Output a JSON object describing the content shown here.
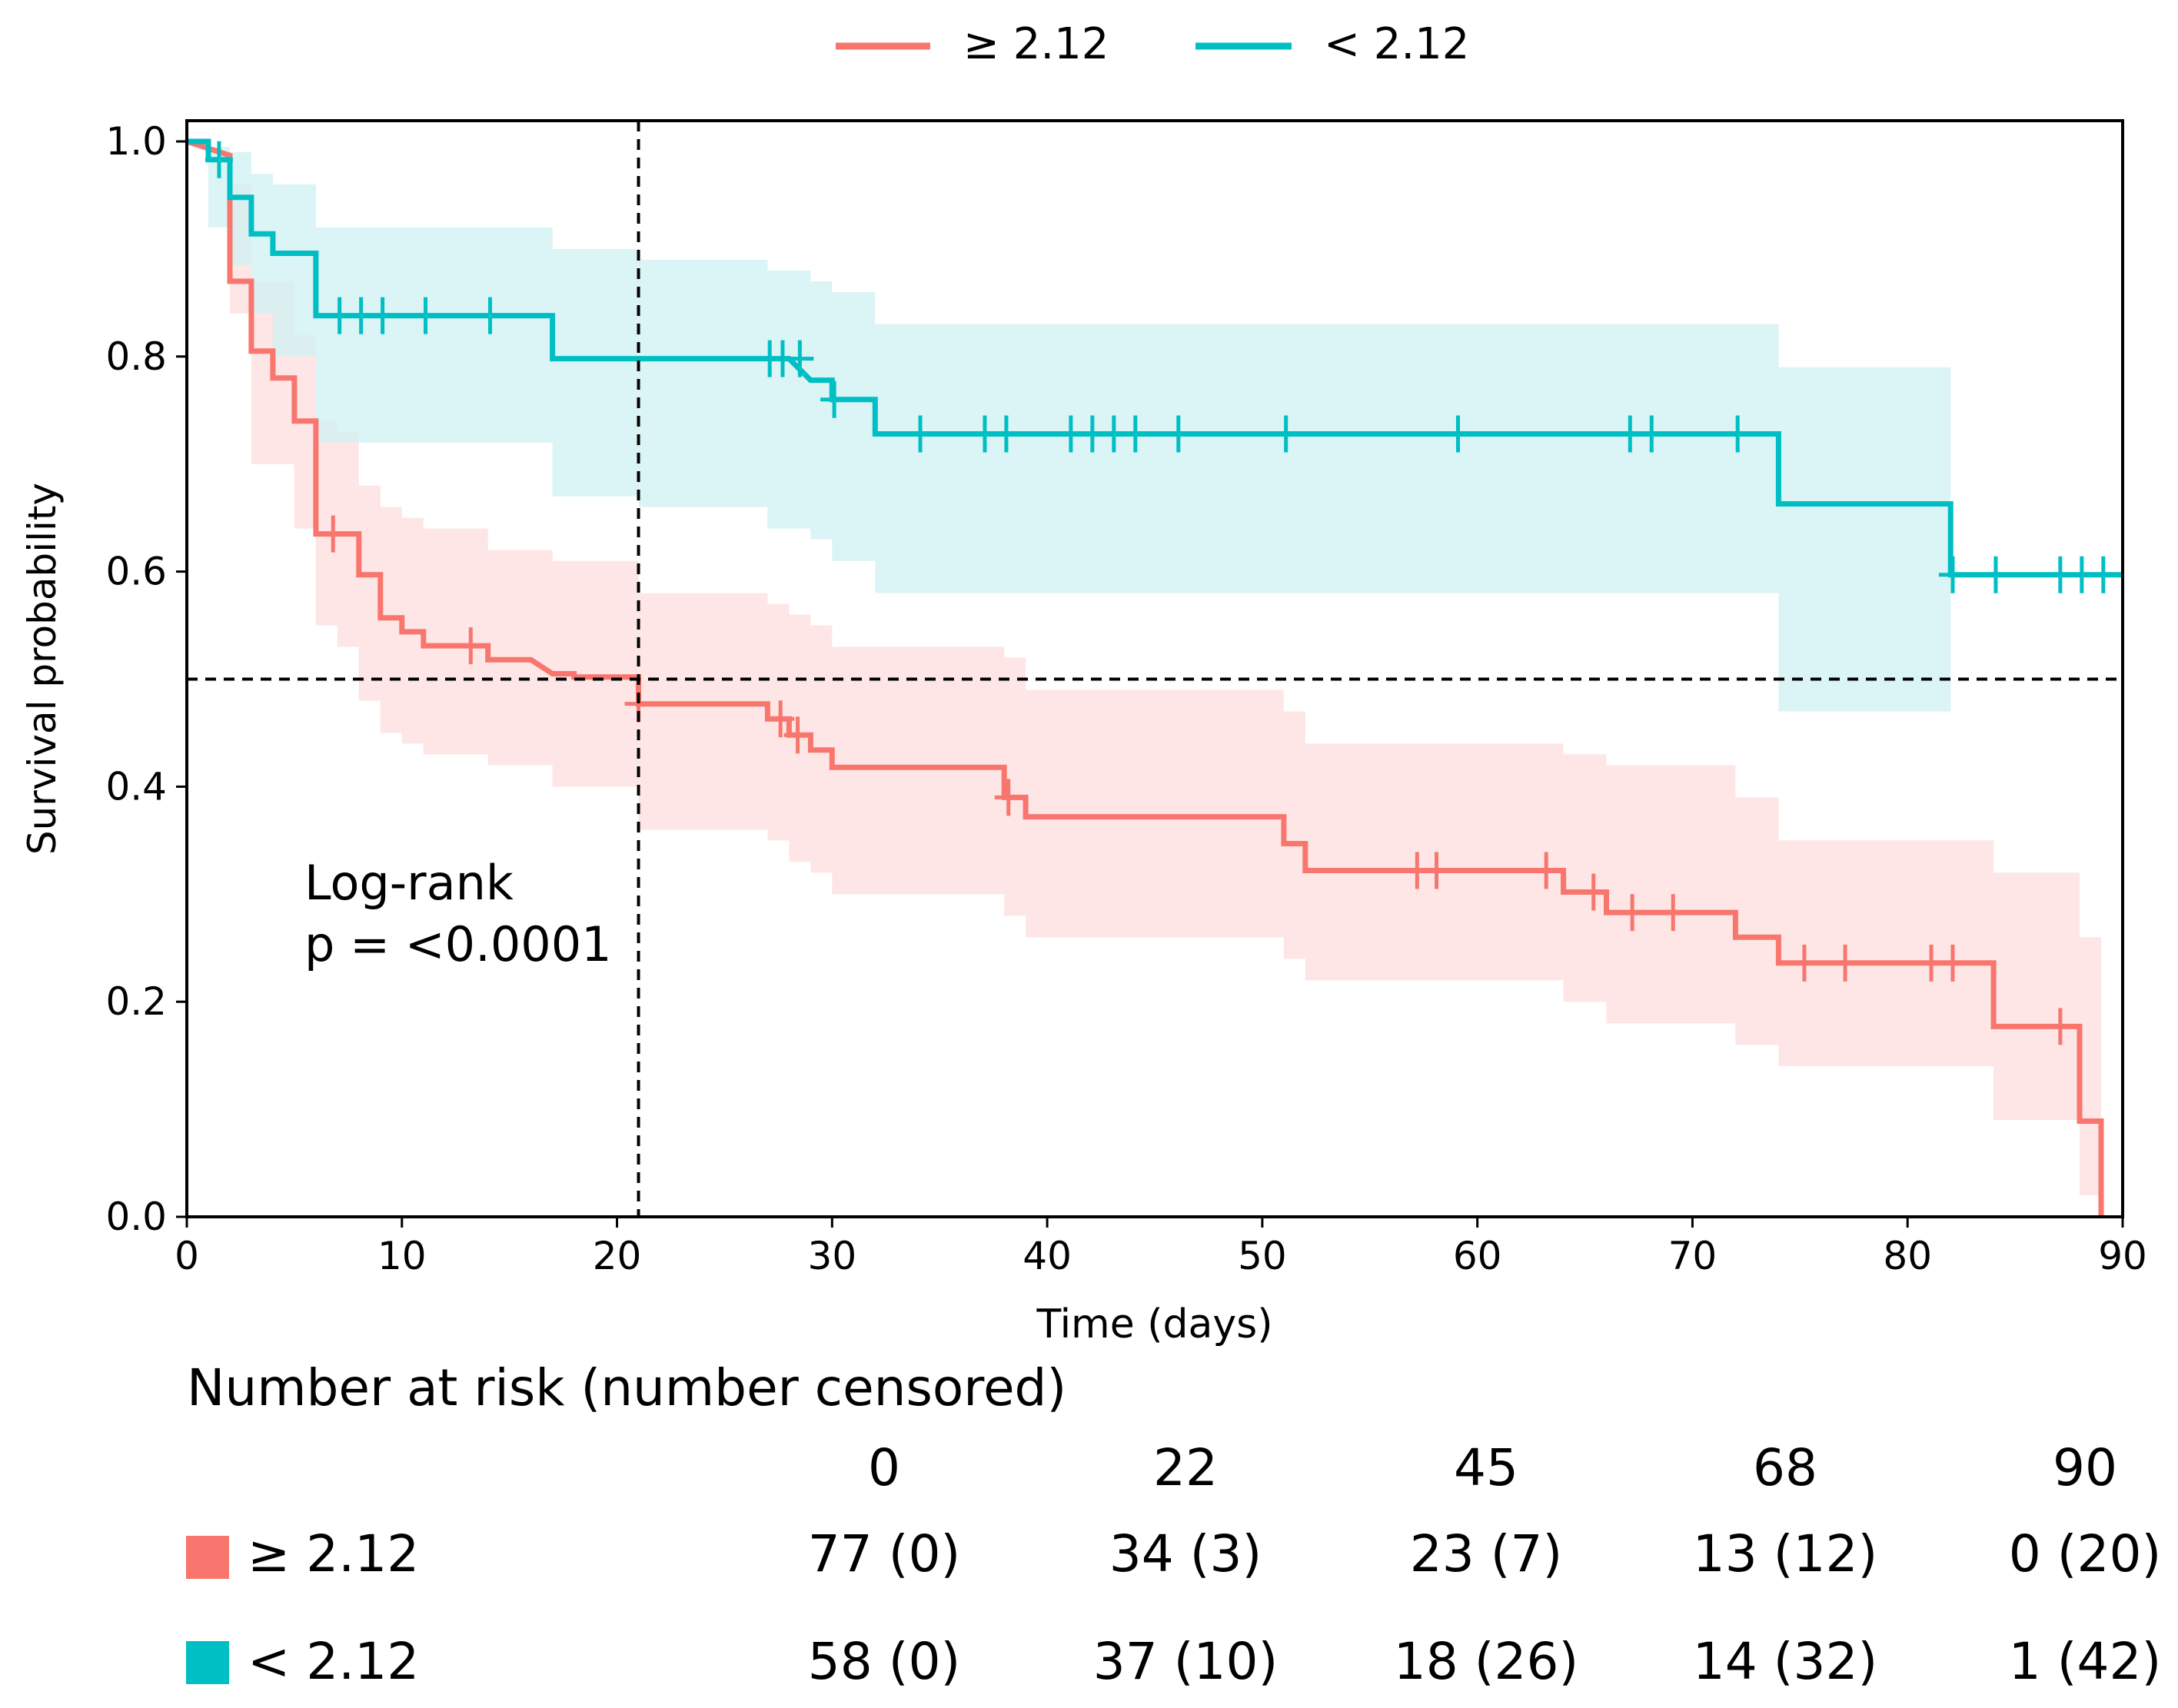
{
  "chart_data": {
    "type": "line",
    "subtype": "kaplan-meier",
    "xlabel": "Time (days)",
    "ylabel": "Survival probability",
    "xlim": [
      0,
      90
    ],
    "ylim": [
      0,
      1.0
    ],
    "xticks": [
      "0",
      "10",
      "20",
      "30",
      "40",
      "50",
      "60",
      "70",
      "80",
      "90"
    ],
    "yticks": [
      "0.0",
      "0.2",
      "0.4",
      "0.6",
      "0.8",
      "1.0"
    ],
    "grid": false,
    "legend_position": "top-center",
    "reference_lines": {
      "median_survival": 0.5,
      "time": 21
    },
    "annotation": [
      "Log-rank",
      "p = <0.0001"
    ],
    "series": [
      {
        "name": "≥ 2.12",
        "color": "#f8766d",
        "band_color": "#fde2e0",
        "steps": [
          [
            0,
            1.0
          ],
          [
            2,
            0.987
          ],
          [
            2,
            0.935
          ],
          [
            2,
            0.87
          ],
          [
            3,
            0.87
          ],
          [
            3,
            0.805
          ],
          [
            4,
            0.805
          ],
          [
            4,
            0.78
          ],
          [
            5,
            0.78
          ],
          [
            5,
            0.74
          ],
          [
            6,
            0.74
          ],
          [
            6,
            0.675
          ],
          [
            6,
            0.635
          ],
          [
            7,
            0.635
          ],
          [
            8,
            0.635
          ],
          [
            8,
            0.597
          ],
          [
            9,
            0.597
          ],
          [
            9,
            0.557
          ],
          [
            10,
            0.557
          ],
          [
            10,
            0.544
          ],
          [
            11,
            0.544
          ],
          [
            11,
            0.531
          ],
          [
            12,
            0.531
          ],
          [
            14,
            0.531
          ],
          [
            14,
            0.518
          ],
          [
            16,
            0.518
          ],
          [
            17,
            0.505
          ],
          [
            18,
            0.505
          ],
          [
            18,
            0.502
          ],
          [
            21,
            0.502
          ],
          [
            21,
            0.477
          ],
          [
            27,
            0.477
          ],
          [
            27,
            0.463
          ],
          [
            28,
            0.463
          ],
          [
            28,
            0.448
          ],
          [
            29,
            0.448
          ],
          [
            29,
            0.434
          ],
          [
            30,
            0.434
          ],
          [
            30,
            0.418
          ],
          [
            38,
            0.418
          ],
          [
            38,
            0.39
          ],
          [
            39,
            0.39
          ],
          [
            39,
            0.372
          ],
          [
            51,
            0.372
          ],
          [
            51,
            0.347
          ],
          [
            52,
            0.347
          ],
          [
            52,
            0.322
          ],
          [
            64,
            0.322
          ],
          [
            64,
            0.302
          ],
          [
            66,
            0.302
          ],
          [
            66,
            0.283
          ],
          [
            72,
            0.283
          ],
          [
            72,
            0.26
          ],
          [
            74,
            0.26
          ],
          [
            74,
            0.236
          ],
          [
            84,
            0.236
          ],
          [
            84,
            0.177
          ],
          [
            88,
            0.177
          ],
          [
            88,
            0.089
          ],
          [
            89,
            0.089
          ],
          [
            89,
            0.0
          ]
        ],
        "band": [
          [
            0,
            1.0,
            1.0
          ],
          [
            2,
            0.96,
            0.84
          ],
          [
            3,
            0.93,
            0.75
          ],
          [
            3,
            0.87,
            0.7
          ],
          [
            5,
            0.82,
            0.64
          ],
          [
            6,
            0.74,
            0.55
          ],
          [
            7,
            0.73,
            0.53
          ],
          [
            8,
            0.68,
            0.48
          ],
          [
            9,
            0.66,
            0.45
          ],
          [
            10,
            0.65,
            0.44
          ],
          [
            11,
            0.64,
            0.43
          ],
          [
            14,
            0.62,
            0.42
          ],
          [
            17,
            0.61,
            0.4
          ],
          [
            21,
            0.6,
            0.39
          ],
          [
            21,
            0.58,
            0.36
          ],
          [
            27,
            0.57,
            0.35
          ],
          [
            28,
            0.56,
            0.33
          ],
          [
            29,
            0.55,
            0.32
          ],
          [
            30,
            0.53,
            0.3
          ],
          [
            38,
            0.52,
            0.28
          ],
          [
            39,
            0.49,
            0.26
          ],
          [
            51,
            0.47,
            0.24
          ],
          [
            52,
            0.44,
            0.22
          ],
          [
            64,
            0.43,
            0.2
          ],
          [
            66,
            0.42,
            0.18
          ],
          [
            72,
            0.39,
            0.16
          ],
          [
            74,
            0.35,
            0.14
          ],
          [
            84,
            0.32,
            0.09
          ],
          [
            88,
            0.26,
            0.02
          ],
          [
            89,
            0.26,
            0.02
          ]
        ],
        "censored": [
          6.8,
          13.2,
          21,
          27.6,
          28.4,
          38.2,
          57.2,
          58.1,
          63.2,
          65.4,
          67.2,
          69.1,
          75.2,
          77.1,
          81.1,
          82.1,
          87.1
        ],
        "risk_table": [
          "77 (0)",
          "34 (3)",
          "23 (7)",
          "13 (12)",
          "0 (20)"
        ]
      },
      {
        "name": "< 2.12",
        "color": "#00bfc4",
        "band_color": "#d2f1f2",
        "steps": [
          [
            0,
            1.0
          ],
          [
            1,
            1.0
          ],
          [
            1,
            0.983
          ],
          [
            2,
            0.983
          ],
          [
            2,
            0.948
          ],
          [
            3,
            0.948
          ],
          [
            3,
            0.914
          ],
          [
            4,
            0.914
          ],
          [
            4,
            0.896
          ],
          [
            6,
            0.896
          ],
          [
            6,
            0.858
          ],
          [
            6,
            0.838
          ],
          [
            17,
            0.838
          ],
          [
            17,
            0.798
          ],
          [
            27,
            0.798
          ],
          [
            28,
            0.798
          ],
          [
            29,
            0.778
          ],
          [
            30,
            0.778
          ],
          [
            30,
            0.76
          ],
          [
            32,
            0.76
          ],
          [
            32,
            0.728
          ],
          [
            74,
            0.728
          ],
          [
            74,
            0.663
          ],
          [
            82,
            0.663
          ],
          [
            82,
            0.597
          ],
          [
            90,
            0.597
          ]
        ],
        "band": [
          [
            0,
            1.0,
            1.0
          ],
          [
            1,
            0.995,
            0.92
          ],
          [
            2,
            0.99,
            0.885
          ],
          [
            3,
            0.97,
            0.84
          ],
          [
            4,
            0.96,
            0.8
          ],
          [
            6,
            0.93,
            0.75
          ],
          [
            6,
            0.92,
            0.72
          ],
          [
            17,
            0.9,
            0.67
          ],
          [
            21,
            0.89,
            0.66
          ],
          [
            27,
            0.88,
            0.64
          ],
          [
            29,
            0.87,
            0.63
          ],
          [
            30,
            0.86,
            0.61
          ],
          [
            32,
            0.83,
            0.58
          ],
          [
            74,
            0.79,
            0.47
          ],
          [
            82,
            0.79,
            0.47
          ]
        ],
        "censored": [
          1.5,
          7.1,
          8.1,
          9.1,
          11.1,
          14.1,
          27.1,
          27.7,
          28.5,
          30.1,
          34.1,
          37.1,
          38.1,
          41.1,
          42.1,
          43.1,
          44.1,
          46.1,
          51.1,
          59.1,
          67.1,
          68.1,
          72.1,
          82.1,
          84.1,
          87.1,
          88.1,
          89.1
        ],
        "risk_table": [
          "58 (0)",
          "37 (10)",
          "18 (26)",
          "14 (32)",
          "1 (42)"
        ]
      }
    ],
    "risk_table": {
      "title": "Number at risk (number censored)",
      "times": [
        "0",
        "22",
        "45",
        "68",
        "90"
      ]
    }
  }
}
